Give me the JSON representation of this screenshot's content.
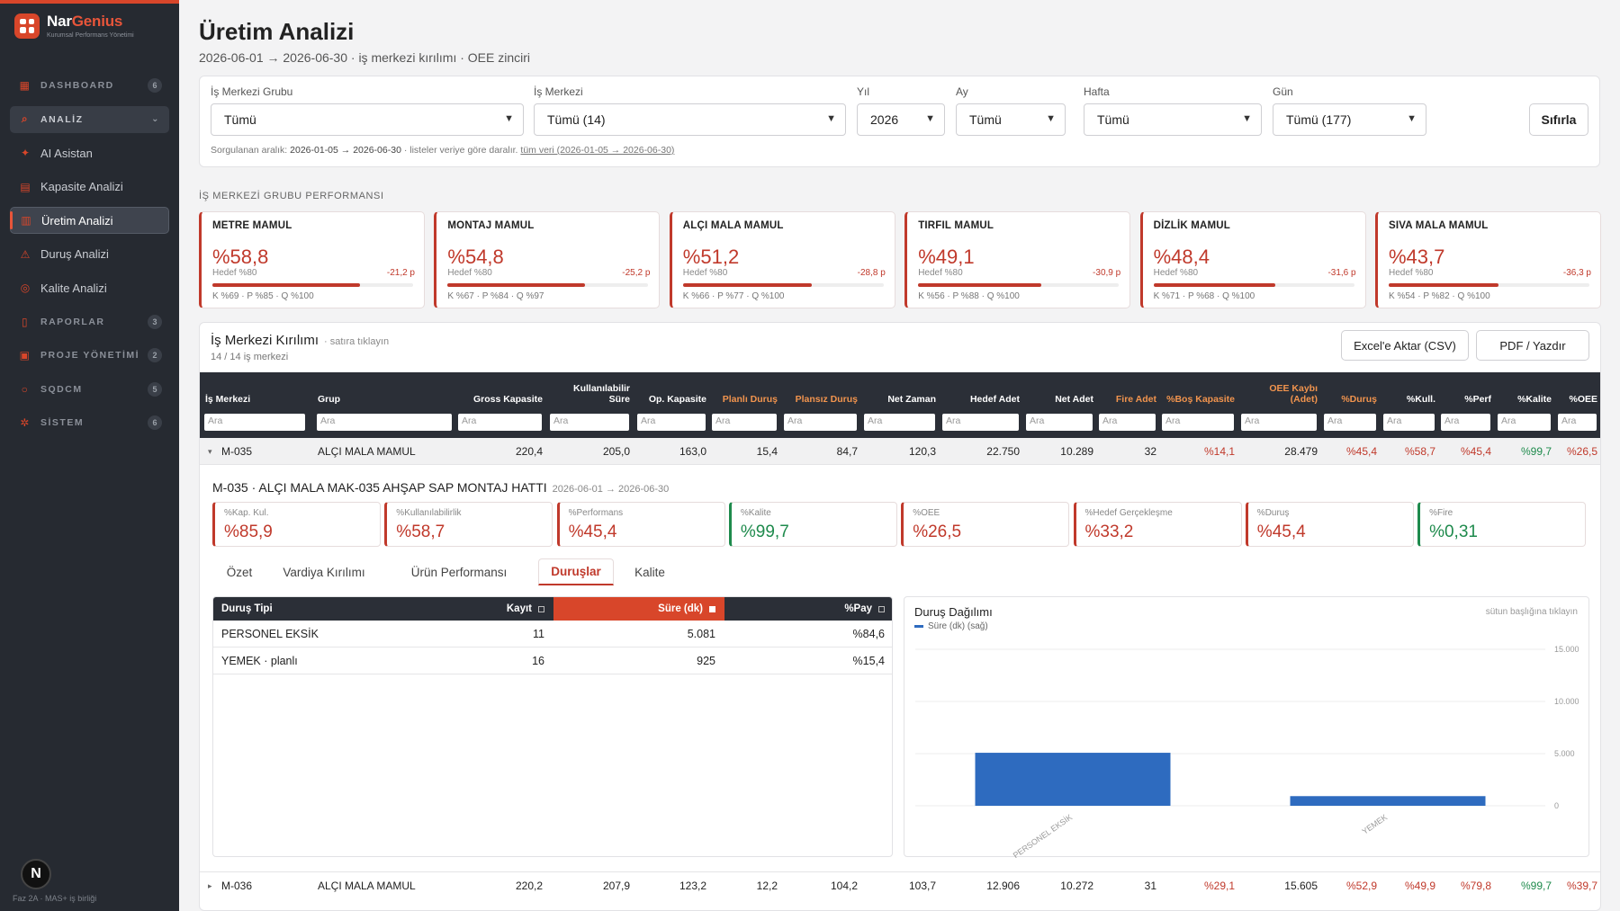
{
  "brand": {
    "name_a": "Nar",
    "name_b": "Genius",
    "subtitle": "Kurumsal Performans Yönetimi"
  },
  "sidebar": {
    "items": [
      {
        "label": "DASHBOARD",
        "icon": "grid-icon",
        "count": "6",
        "kind": "section"
      },
      {
        "label": "ANALİZ",
        "icon": "search-icon",
        "kind": "section-open"
      },
      {
        "label": "AI Asistan",
        "icon": "sparkle-icon",
        "kind": "item"
      },
      {
        "label": "Kapasite Analizi",
        "icon": "calendar-icon",
        "kind": "item"
      },
      {
        "label": "Üretim Analizi",
        "icon": "bar-chart-icon",
        "kind": "active"
      },
      {
        "label": "Duruş Analizi",
        "icon": "warning-icon",
        "kind": "item"
      },
      {
        "label": "Kalite Analizi",
        "icon": "check-circle-icon",
        "kind": "item"
      },
      {
        "label": "RAPORLAR",
        "icon": "document-icon",
        "count": "3",
        "kind": "section"
      },
      {
        "label": "PROJE YÖNETİMİ",
        "icon": "kanban-icon",
        "count": "2",
        "kind": "section"
      },
      {
        "label": "SQDCM",
        "icon": "circle-icon",
        "count": "5",
        "kind": "section"
      },
      {
        "label": "SİSTEM",
        "icon": "gear-icon",
        "count": "6",
        "kind": "section"
      }
    ],
    "avatar": "N",
    "footer": "Faz 2A · MAS+ iş birliği"
  },
  "header": {
    "title": "Üretim Analizi",
    "subtitle": "2026-06-01 → 2026-06-30 · iş merkezi kırılımı · OEE zinciri"
  },
  "filters": {
    "group": {
      "label": "İş Merkezi Grubu",
      "value": "Tümü"
    },
    "center": {
      "label": "İş Merkezi",
      "value": "Tümü (14)"
    },
    "year": {
      "label": "Yıl",
      "value": "2026"
    },
    "month": {
      "label": "Ay",
      "value": "Tümü"
    },
    "week": {
      "label": "Hafta",
      "value": "Tümü"
    },
    "day": {
      "label": "Gün",
      "value": "Tümü (177)"
    },
    "reset": "Sıfırla",
    "note_prefix": "Sorgulanan aralık:",
    "note_range": "2026-01-05 → 2026-06-30",
    "note_mid": "· listeler veriye göre daralır.",
    "note_link": "tüm veri (2026-01-05 → 2026-06-30)"
  },
  "groups": {
    "section_label": "İŞ MERKEZİ GRUBU PERFORMANSI",
    "cards": [
      {
        "name": "METRE MAMUL",
        "value": "%58,8",
        "target": "Hedef %80",
        "delta": "-21,2 p",
        "kpq": "K %69 · P %85 · Q %100",
        "progress": 0.735
      },
      {
        "name": "MONTAJ MAMUL",
        "value": "%54,8",
        "target": "Hedef %80",
        "delta": "-25,2 p",
        "kpq": "K %67 · P %84 · Q %97",
        "progress": 0.685
      },
      {
        "name": "ALÇI MALA MAMUL",
        "value": "%51,2",
        "target": "Hedef %80",
        "delta": "-28,8 p",
        "kpq": "K %66 · P %77 · Q %100",
        "progress": 0.64
      },
      {
        "name": "TIRFIL MAMUL",
        "value": "%49,1",
        "target": "Hedef %80",
        "delta": "-30,9 p",
        "kpq": "K %56 · P %88 · Q %100",
        "progress": 0.614
      },
      {
        "name": "DİZLİK MAMUL",
        "value": "%48,4",
        "target": "Hedef %80",
        "delta": "-31,6 p",
        "kpq": "K %71 · P %68 · Q %100",
        "progress": 0.605
      },
      {
        "name": "SIVA MALA MAMUL",
        "value": "%43,7",
        "target": "Hedef %80",
        "delta": "-36,3 p",
        "kpq": "K %54 · P %82 · Q %100",
        "progress": 0.546
      }
    ]
  },
  "table": {
    "title": "İş Merkezi Kırılımı",
    "hint": "· satıra tıklayın",
    "count": "14 / 14 iş merkezi",
    "export_csv": "Excel'e Aktar (CSV)",
    "export_pdf": "PDF / Yazdır",
    "filter_placeholder": "Ara",
    "columns": [
      "İş Merkezi",
      "Grup",
      "Gross Kapasite",
      "Kullanılabilir Süre",
      "Op. Kapasite",
      "Planlı Duruş",
      "Plansız Duruş",
      "Net Zaman",
      "Hedef Adet",
      "Net Adet",
      "Fire Adet",
      "%Boş Kapasite",
      "OEE Kaybı (Adet)",
      "%Duruş",
      "%Kull.",
      "%Perf",
      "%Kalite",
      "%OEE"
    ],
    "rows": [
      {
        "expander": "▾",
        "cells": [
          "M-035",
          "ALÇI MALA MAMUL",
          "220,4",
          "205,0",
          "163,0",
          "15,4",
          "84,7",
          "120,3",
          "22.750",
          "10.289",
          "32",
          "%14,1",
          "28.479",
          "%45,4",
          "%58,7",
          "%45,4",
          "%99,7",
          "%26,5"
        ]
      },
      {
        "expander": "▸",
        "cells": [
          "M-036",
          "ALÇI MALA MAMUL",
          "220,2",
          "207,9",
          "123,2",
          "12,2",
          "104,2",
          "103,7",
          "12.906",
          "10.272",
          "31",
          "%29,1",
          "15.605",
          "%52,9",
          "%49,9",
          "%79,8",
          "%99,7",
          "%39,7"
        ]
      }
    ]
  },
  "detail": {
    "title": "M-035 · ALÇI MALA MAK-035 AHŞAP SAP MONTAJ HATTI",
    "range": "2026-06-01 → 2026-06-30",
    "kpis": [
      {
        "label": "%Kap. Kul.",
        "value": "%85,9",
        "tone": "red"
      },
      {
        "label": "%Kullanılabilirlik",
        "value": "%58,7",
        "tone": "red"
      },
      {
        "label": "%Performans",
        "value": "%45,4",
        "tone": "red"
      },
      {
        "label": "%Kalite",
        "value": "%99,7",
        "tone": "green"
      },
      {
        "label": "%OEE",
        "value": "%26,5",
        "tone": "red"
      },
      {
        "label": "%Hedef Gerçekleşme",
        "value": "%33,2",
        "tone": "red"
      },
      {
        "label": "%Duruş",
        "value": "%45,4",
        "tone": "red"
      },
      {
        "label": "%Fire",
        "value": "%0,31",
        "tone": "green"
      }
    ],
    "tabs": [
      "Özet",
      "Vardiya Kırılımı",
      "Ürün Performansı",
      "Duruşlar",
      "Kalite"
    ],
    "active_tab": "Duruşlar",
    "downtime": {
      "columns": [
        "Duruş Tipi",
        "Kayıt",
        "Süre (dk)",
        "%Pay"
      ],
      "sorted_column": "Süre (dk)",
      "rows": [
        [
          "PERSONEL EKSİK",
          "11",
          "5.081",
          "%84,6"
        ],
        [
          "YEMEK · planlı",
          "16",
          "925",
          "%15,4"
        ]
      ]
    }
  },
  "chart_data": {
    "type": "bar",
    "title": "Duruş Dağılımı",
    "hint": "sütun başlığına tıklayın",
    "categories": [
      "PERSONEL EKSİK",
      "YEMEK"
    ],
    "series": [
      {
        "name": "Süre (dk) (sağ)",
        "values": [
          5081,
          925
        ],
        "color": "#2e6bbf"
      }
    ],
    "ylim": [
      0,
      15000
    ],
    "yticks": [
      0,
      5000,
      10000,
      15000
    ],
    "ytick_labels": [
      "0",
      "5.000",
      "10.000",
      "15.000"
    ],
    "y_axis_side": "right",
    "grid": true
  }
}
